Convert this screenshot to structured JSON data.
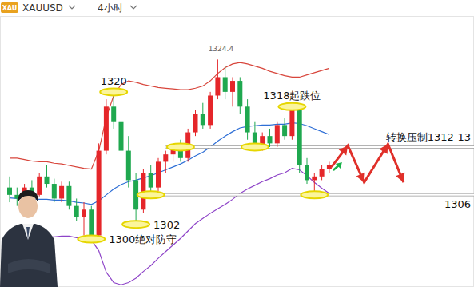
{
  "chart_data": {
    "type": "candlestick",
    "title": "XAUUSD",
    "subtitle": "4小时",
    "badge": "XAU",
    "categories": [
      null,
      null,
      null,
      null,
      null,
      null,
      null,
      null,
      null,
      null,
      null,
      null,
      null,
      null,
      null,
      null,
      null,
      null,
      null,
      null,
      null,
      null,
      null,
      null,
      null,
      null,
      null,
      null,
      null,
      null,
      null,
      null,
      null,
      null,
      null,
      null,
      null,
      null,
      null,
      null,
      null,
      null,
      null,
      null
    ],
    "open": [
      1307,
      1306,
      1305.5,
      1307,
      1306,
      1308.5,
      1307.5,
      1305.5,
      1307.2,
      1304.5,
      1303,
      1304,
      1300.5,
      1312,
      1318,
      1316,
      1312,
      1308,
      1304,
      1309,
      1307,
      1310.5,
      1311.5,
      1312.5,
      1311,
      1314.5,
      1317,
      1315.5,
      1319.5,
      1322,
      1320,
      1321.5,
      1318,
      1314.5,
      1312.5,
      1314,
      1313,
      1315.5,
      1314,
      1317.5,
      1310,
      1308,
      1308.5,
      1309.5
    ],
    "high": [
      1308.5,
      1307,
      1307.5,
      1308,
      1309,
      1310,
      1308.2,
      1307.8,
      1307.8,
      1305.5,
      1305,
      1304.5,
      1313,
      1319,
      1320.5,
      1318,
      1314,
      1309,
      1309.5,
      1310,
      1311,
      1312,
      1313,
      1313.5,
      1315,
      1317.5,
      1318.5,
      1320,
      1324.4,
      1323.5,
      1322,
      1322,
      1319,
      1316,
      1314.5,
      1315,
      1316,
      1316.5,
      1318,
      1318,
      1311,
      1309,
      1310,
      1310.5
    ],
    "low": [
      1305,
      1304.5,
      1305,
      1305.5,
      1305.8,
      1307,
      1305,
      1305,
      1304,
      1302.5,
      1300.5,
      1299.5,
      1300,
      1311.5,
      1315,
      1311,
      1307,
      1302,
      1303.5,
      1306.5,
      1306.5,
      1309,
      1310.5,
      1310.5,
      1310.5,
      1314,
      1315,
      1315,
      1319,
      1319,
      1318,
      1317,
      1313.5,
      1312,
      1312,
      1312.5,
      1312.5,
      1313.5,
      1313.5,
      1309,
      1307.5,
      1306.5,
      1308,
      1309
    ],
    "close": [
      1306,
      1305.5,
      1307,
      1306,
      1308.5,
      1307.5,
      1305.5,
      1307.2,
      1304.5,
      1303,
      1304,
      1300.5,
      1312,
      1318,
      1316,
      1312,
      1308,
      1304,
      1309,
      1307,
      1310.5,
      1311.5,
      1312.5,
      1311,
      1314.5,
      1317,
      1315.5,
      1319.5,
      1322,
      1320,
      1321.5,
      1318,
      1314.5,
      1312.5,
      1314,
      1313,
      1315.5,
      1314,
      1317.5,
      1310,
      1308,
      1308.5,
      1309.5,
      1310
    ],
    "series": [
      {
        "type": "line",
        "color": "#d8463c",
        "values": [
          1311,
          1311,
          1310.8,
          1310.6,
          1310.5,
          1310.5,
          1310.3,
          1310.2,
          1310,
          1309.8,
          1309.6,
          1309.5,
          1312,
          1316.5,
          1319.5,
          1321,
          1321.5,
          1321.3,
          1321,
          1320.8,
          1320.6,
          1320.5,
          1320.4,
          1320.3,
          1320.3,
          1320.5,
          1320.8,
          1321.5,
          1322.5,
          1323.3,
          1323.8,
          1324,
          1323.8,
          1323.5,
          1323.2,
          1322.8,
          1322.5,
          1322.2,
          1322,
          1322,
          1322.3,
          1322.6,
          1322.9,
          1323.2
        ]
      },
      {
        "type": "line",
        "color": "#2f6fd6",
        "values": [
          1305.6,
          1305.5,
          1305.5,
          1305.4,
          1305.4,
          1305.4,
          1305.3,
          1305.3,
          1305.2,
          1305,
          1304.9,
          1304.7,
          1305.2,
          1306,
          1306.8,
          1307.4,
          1307.8,
          1308,
          1308.3,
          1308.6,
          1309,
          1309.4,
          1309.8,
          1310.2,
          1310.7,
          1311.3,
          1311.8,
          1312.5,
          1313.3,
          1314,
          1314.6,
          1315.1,
          1315.3,
          1315.4,
          1315.5,
          1315.5,
          1315.6,
          1315.6,
          1315.8,
          1315.7,
          1315.4,
          1315,
          1314.6,
          1314.2
        ]
      },
      {
        "type": "line",
        "color": "#8e44c8",
        "values": [
          1300.2,
          1300.1,
          1300.2,
          1300.2,
          1300.3,
          1300.3,
          1300.3,
          1300.4,
          1300.4,
          1300.2,
          1300.2,
          1299.9,
          1298.4,
          1295.5,
          1294.1,
          1293.8,
          1294.1,
          1294.7,
          1295.6,
          1296.4,
          1297.4,
          1298.3,
          1299.2,
          1300.1,
          1301.1,
          1302.1,
          1302.8,
          1303.5,
          1304.1,
          1304.7,
          1305.4,
          1306.2,
          1306.8,
          1307.3,
          1307.8,
          1308.2,
          1308.7,
          1309,
          1309.6,
          1309.4,
          1308.6,
          1307.7,
          1306.9,
          1306.2
        ]
      }
    ],
    "ylim": [
      1293.5,
      1330.3
    ],
    "tick_labels": false,
    "grid": false,
    "annotations": [
      {
        "text": "1324.4",
        "value": 1324.4,
        "index": 28,
        "marker": "none"
      },
      {
        "text": "1320",
        "value": 1320,
        "index": 14,
        "marker": "ellipse"
      },
      {
        "text": "1318起跌位",
        "value": 1318,
        "index": 38,
        "marker": "ellipse"
      },
      {
        "text": "1302",
        "value": 1302,
        "index": 17,
        "marker": "ellipse"
      },
      {
        "text": "1300绝对防守",
        "value": 1300,
        "index": 11,
        "marker": "ellipse"
      }
    ],
    "highlights": [
      {
        "value": 1312.5,
        "index": 23
      },
      {
        "value": 1312.5,
        "index": 33
      },
      {
        "value": 1306,
        "index": 19
      },
      {
        "value": 1306,
        "index": 41
      }
    ],
    "levels": [
      {
        "value": 1312.5,
        "from": 21,
        "text": "转换压制1312-13"
      },
      {
        "value": 1306,
        "from": 18,
        "text": "1306"
      }
    ],
    "forecast": {
      "color": "#e0302a",
      "x": [
        43.3,
        45.5,
        47.7,
        50.9,
        53
      ],
      "values": [
        1309.8,
        1312.7,
        1307.7,
        1312.9,
        1307.7
      ]
    }
  }
}
